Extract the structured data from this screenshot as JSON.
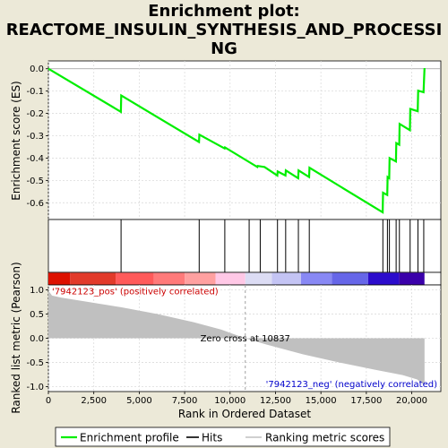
{
  "title_lines": [
    "Enrichment plot:",
    "REACTOME_INSULIN_SYNTHESIS_AND_PROCESSI",
    "NG"
  ],
  "chart_data": {
    "type": "line",
    "top_panel": {
      "ylabel": "Enrichment score (ES)",
      "ylim": [
        -0.675,
        0.035
      ],
      "yticks": [
        0.0,
        -0.1,
        -0.2,
        -0.3,
        -0.4,
        -0.5,
        -0.6
      ],
      "ytick_labels": [
        "0.0",
        "-0.1",
        "-0.2",
        "-0.3",
        "-0.4",
        "-0.5",
        "-0.6"
      ],
      "es_curve": {
        "color": "#00ee00",
        "x": [
          0,
          3990,
          4010,
          8290,
          8310,
          9700,
          9720,
          11500,
          11520,
          11900,
          12600,
          12620,
          13050,
          13070,
          13750,
          13770,
          14350,
          14370,
          18400,
          18420,
          18650,
          18670,
          18760,
          18780,
          19130,
          19150,
          19310,
          19330,
          19900,
          19920,
          20330,
          20350,
          20650,
          20700
        ],
        "y": [
          0.0,
          -0.193,
          -0.12,
          -0.328,
          -0.295,
          -0.357,
          -0.352,
          -0.44,
          -0.435,
          -0.44,
          -0.478,
          -0.46,
          -0.478,
          -0.455,
          -0.49,
          -0.455,
          -0.485,
          -0.443,
          -0.643,
          -0.555,
          -0.565,
          -0.485,
          -0.49,
          -0.4,
          -0.415,
          -0.333,
          -0.34,
          -0.247,
          -0.275,
          -0.18,
          -0.19,
          -0.098,
          -0.105,
          0.003
        ]
      }
    },
    "hits": {
      "ranks": [
        4000,
        8300,
        9710,
        11050,
        11660,
        12610,
        13060,
        13760,
        14360,
        18410,
        18660,
        18770,
        19140,
        19320,
        19910,
        20340,
        20660
      ]
    },
    "heatmap": {
      "segments": [
        {
          "end": 1200,
          "color": "#dd1100"
        },
        {
          "end": 3700,
          "color": "#e23a2a"
        },
        {
          "end": 5800,
          "color": "#ff5a5a"
        },
        {
          "end": 7500,
          "color": "#ff7a7a"
        },
        {
          "end": 9200,
          "color": "#ffa0a0"
        },
        {
          "end": 10837,
          "color": "#ffc8e6"
        },
        {
          "end": 12300,
          "color": "#dcdcf4"
        },
        {
          "end": 13900,
          "color": "#c4c4f4"
        },
        {
          "end": 15600,
          "color": "#8888f4"
        },
        {
          "end": 17600,
          "color": "#6666e8"
        },
        {
          "end": 19300,
          "color": "#2c0ccc"
        },
        {
          "end": 20700,
          "color": "#3a00aa"
        }
      ]
    },
    "bottom_panel": {
      "ylabel": "Ranked list metric (Pearson)",
      "xlabel": "Rank in Ordered Dataset",
      "ylim": [
        -1.1,
        1.1
      ],
      "yticks": [
        1.0,
        0.5,
        0.0,
        -0.5,
        -1.0
      ],
      "ytick_labels": [
        "1.0",
        "0.5",
        "0.0",
        "-0.5",
        "-1.0"
      ],
      "xlim": [
        0,
        21600
      ],
      "xticks": [
        0,
        2500,
        5000,
        7500,
        10000,
        12500,
        15000,
        17500,
        20000
      ],
      "xtick_labels": [
        "0",
        "2,500",
        "5,000",
        "7,500",
        "10,000",
        "12,500",
        "15,000",
        "17,500",
        "20,000"
      ],
      "metric_fill": {
        "color": "#c0c0c0",
        "x": [
          0,
          200,
          700,
          2000,
          4000,
          6000,
          8000,
          9500,
          10837,
          12000,
          14000,
          16000,
          18000,
          19500,
          20300,
          20700
        ],
        "y": [
          0.98,
          0.88,
          0.84,
          0.76,
          0.64,
          0.5,
          0.33,
          0.18,
          0.0,
          -0.13,
          -0.33,
          -0.5,
          -0.65,
          -0.76,
          -0.85,
          -0.97
        ]
      },
      "zero_cross": {
        "rank": 10837,
        "label": "Zero cross at 10837"
      },
      "pos_label": "'7942123_pos' (positively correlated)",
      "neg_label": "'7942123_neg' (negatively correlated)"
    },
    "legend": {
      "entries": [
        {
          "label": "Enrichment profile",
          "color": "#00ee00"
        },
        {
          "label": "Hits",
          "color": "#000000"
        },
        {
          "label": "Ranking metric scores",
          "color": "#c0c0c0"
        }
      ]
    }
  }
}
